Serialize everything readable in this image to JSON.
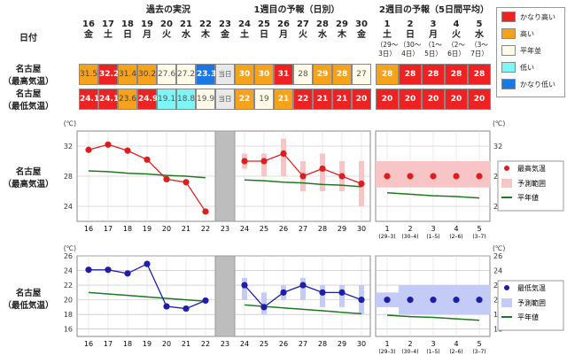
{
  "headers": {
    "past": "過去の実況",
    "week1": "1週目の予報（日別）",
    "week2": "2週目の予報（5日間平均）",
    "date_label": "日付"
  },
  "days_past": [
    {
      "d": "16",
      "w": "金"
    },
    {
      "d": "17",
      "w": "土"
    },
    {
      "d": "18",
      "w": "日"
    },
    {
      "d": "19",
      "w": "月"
    },
    {
      "d": "20",
      "w": "火"
    },
    {
      "d": "21",
      "w": "水"
    },
    {
      "d": "22",
      "w": "木"
    }
  ],
  "day_today": {
    "d": "23",
    "w": "金"
  },
  "days_week1": [
    {
      "d": "24",
      "w": "土"
    },
    {
      "d": "25",
      "w": "日"
    },
    {
      "d": "26",
      "w": "月"
    },
    {
      "d": "27",
      "w": "火"
    },
    {
      "d": "28",
      "w": "水"
    },
    {
      "d": "29",
      "w": "木"
    },
    {
      "d": "30",
      "w": "金"
    }
  ],
  "days_week2": [
    {
      "d": "1",
      "w": "土",
      "r1": "（29～",
      "r2": "3日）"
    },
    {
      "d": "2",
      "w": "日",
      "r1": "（30～",
      "r2": "4日）"
    },
    {
      "d": "3",
      "w": "月",
      "r1": "（1～",
      "r2": "5日）"
    },
    {
      "d": "4",
      "w": "火",
      "r1": "（2～",
      "r2": "6日）"
    },
    {
      "d": "5",
      "w": "水",
      "r1": "（3～",
      "r2": "7日）"
    }
  ],
  "row_labels": {
    "max_1": "名古屋",
    "max_2": "（最高気温）",
    "min_1": "名古屋",
    "min_2": "（最低気温）"
  },
  "today_text": "当日",
  "max_cells": {
    "past": [
      {
        "v": "31.5",
        "c": "orange"
      },
      {
        "v": "32.2",
        "c": "red"
      },
      {
        "v": "31.4",
        "c": "orange"
      },
      {
        "v": "30.2",
        "c": "orange"
      },
      {
        "v": "27.6",
        "c": "cream"
      },
      {
        "v": "27.2",
        "c": "cream"
      },
      {
        "v": "23.3",
        "c": "blue"
      }
    ],
    "week1": [
      {
        "v": "30",
        "c": "orange"
      },
      {
        "v": "30",
        "c": "orange"
      },
      {
        "v": "31",
        "c": "red"
      },
      {
        "v": "28",
        "c": "cream"
      },
      {
        "v": "29",
        "c": "orange"
      },
      {
        "v": "28",
        "c": "orange"
      },
      {
        "v": "27",
        "c": "cream"
      }
    ],
    "week2": [
      {
        "v": "28",
        "c": "orange"
      },
      {
        "v": "28",
        "c": "red"
      },
      {
        "v": "28",
        "c": "red"
      },
      {
        "v": "28",
        "c": "red"
      },
      {
        "v": "28",
        "c": "red"
      }
    ]
  },
  "min_cells": {
    "past": [
      {
        "v": "24.1",
        "c": "red"
      },
      {
        "v": "24.1",
        "c": "red"
      },
      {
        "v": "23.6",
        "c": "orange"
      },
      {
        "v": "24.9",
        "c": "red"
      },
      {
        "v": "19.1",
        "c": "cyan"
      },
      {
        "v": "18.8",
        "c": "cyan"
      },
      {
        "v": "19.9",
        "c": "cream"
      }
    ],
    "week1": [
      {
        "v": "22",
        "c": "orange"
      },
      {
        "v": "19",
        "c": "cream"
      },
      {
        "v": "21",
        "c": "orange"
      },
      {
        "v": "22",
        "c": "red"
      },
      {
        "v": "21",
        "c": "red"
      },
      {
        "v": "21",
        "c": "red"
      },
      {
        "v": "20",
        "c": "red"
      }
    ],
    "week2": [
      {
        "v": "20",
        "c": "red"
      },
      {
        "v": "20",
        "c": "red"
      },
      {
        "v": "20",
        "c": "red"
      },
      {
        "v": "20",
        "c": "red"
      },
      {
        "v": "20",
        "c": "red"
      }
    ]
  },
  "colors": {
    "red": "#ee2222",
    "orange": "#f7a21d",
    "cream": "#fffbe8",
    "cyan": "#7ff5f5",
    "blue": "#1a78e5",
    "band": "#f7c5c5",
    "band_blue": "#c5cbf7",
    "normal": "#1e7a1e",
    "dot_red": "#dd1e1e",
    "dot_blue": "#1e1eaa",
    "gray": "#bdbdbd"
  },
  "legend_top": [
    {
      "c": "red",
      "t": "かなり高い"
    },
    {
      "c": "orange",
      "t": "高い"
    },
    {
      "c": "cream",
      "t": "平年並"
    },
    {
      "c": "cyan",
      "t": "低い"
    },
    {
      "c": "blue",
      "t": "かなり低い"
    }
  ],
  "legend_max": {
    "dot": "最高気温",
    "band": "予測範囲",
    "line": "平年値"
  },
  "legend_min": {
    "dot": "最低気温",
    "band": "予測範囲",
    "line": "平年値"
  },
  "chart_data": [
    {
      "type": "line",
      "title": "名古屋（最高気温）",
      "unit": "(℃)",
      "ylim": [
        22,
        34
      ],
      "yticks": [
        24,
        28,
        32
      ],
      "grid": true,
      "past": {
        "x": [
          "16",
          "17",
          "18",
          "19",
          "20",
          "21",
          "22"
        ],
        "values": [
          31.5,
          32.2,
          31.4,
          30.2,
          27.6,
          27.2,
          23.3
        ],
        "normal": [
          28.7,
          28.6,
          28.4,
          28.3,
          28.1,
          28.0,
          27.8
        ]
      },
      "week1": {
        "x": [
          "24",
          "25",
          "26",
          "27",
          "28",
          "29",
          "30"
        ],
        "values": [
          30,
          30,
          31,
          28,
          29,
          28,
          27
        ],
        "range": [
          [
            29,
            31
          ],
          [
            28,
            31
          ],
          [
            28,
            33
          ],
          [
            26,
            30
          ],
          [
            26,
            31
          ],
          [
            26,
            30
          ],
          [
            24,
            30
          ]
        ],
        "normal": [
          27.5,
          27.4,
          27.2,
          27.1,
          26.9,
          26.8,
          26.6
        ]
      },
      "week2": {
        "x": [
          "1",
          "2",
          "3",
          "4",
          "5"
        ],
        "x_sub": [
          "(29–3)",
          "(30–4)",
          "(1–5)",
          "(2–6)",
          "(3–7)"
        ],
        "values": [
          28,
          28,
          28,
          28,
          28
        ],
        "range": [
          [
            26.5,
            30
          ],
          [
            26.5,
            30
          ],
          [
            26.5,
            30
          ],
          [
            26.5,
            30
          ],
          [
            26.5,
            30
          ]
        ],
        "normal": [
          25.8,
          25.6,
          25.4,
          25.3,
          25.1
        ]
      }
    },
    {
      "type": "line",
      "title": "名古屋（最低気温）",
      "unit": "(℃)",
      "ylim": [
        15,
        26
      ],
      "yticks": [
        16,
        18,
        20,
        22,
        24,
        26
      ],
      "grid": true,
      "past": {
        "x": [
          "16",
          "17",
          "18",
          "19",
          "20",
          "21",
          "22"
        ],
        "values": [
          24.1,
          24.1,
          23.6,
          24.9,
          19.1,
          18.8,
          19.9
        ],
        "normal": [
          21.0,
          20.8,
          20.6,
          20.4,
          20.2,
          20.0,
          19.8
        ]
      },
      "week1": {
        "x": [
          "24",
          "25",
          "26",
          "27",
          "28",
          "29",
          "30"
        ],
        "values": [
          22,
          19,
          21,
          22,
          21,
          21,
          20
        ],
        "range": [
          [
            20,
            23
          ],
          [
            18,
            21
          ],
          [
            20,
            22
          ],
          [
            20,
            23
          ],
          [
            19,
            22
          ],
          [
            19,
            22
          ],
          [
            18,
            22
          ]
        ],
        "normal": [
          19.3,
          19.1,
          18.9,
          18.7,
          18.5,
          18.3,
          18.1
        ]
      },
      "week2": {
        "x": [
          "1",
          "2",
          "3",
          "4",
          "5"
        ],
        "x_sub": [
          "(29–3)",
          "(30–4)",
          "(1–5)",
          "(2–6)",
          "(3–7)"
        ],
        "values": [
          20,
          20,
          20,
          20,
          20
        ],
        "range": [
          [
            19,
            21
          ],
          [
            18,
            22
          ],
          [
            18,
            22
          ],
          [
            18,
            22
          ],
          [
            18,
            22
          ]
        ],
        "normal": [
          17.9,
          17.7,
          17.6,
          17.4,
          17.2
        ]
      }
    }
  ]
}
